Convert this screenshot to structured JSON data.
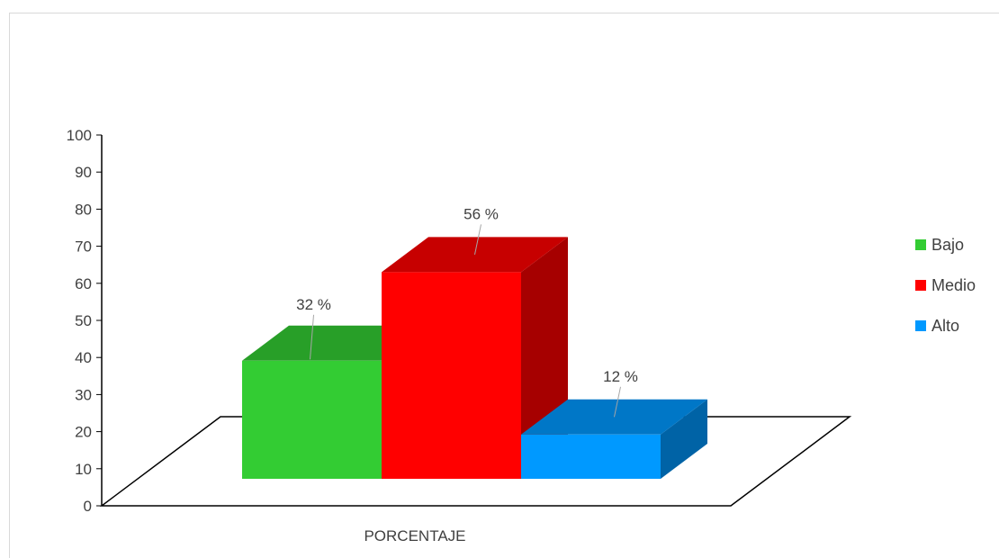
{
  "chart_data": {
    "type": "bar",
    "title": "",
    "xlabel": "PORCENTAJE",
    "ylabel": "",
    "ylim": [
      0,
      100
    ],
    "y_ticks": [
      0,
      10,
      20,
      30,
      40,
      50,
      60,
      70,
      80,
      90,
      100
    ],
    "categories": [
      "PORCENTAJE"
    ],
    "series": [
      {
        "name": "Bajo",
        "values": [
          32
        ],
        "label": "32 %",
        "color": "#33cc33"
      },
      {
        "name": "Medio",
        "values": [
          56
        ],
        "label": "56 %",
        "color": "#ff0000"
      },
      {
        "name": "Alto",
        "values": [
          12
        ],
        "label": "12 %",
        "color": "#0099ff"
      }
    ],
    "legend_position": "right",
    "grid": false,
    "style": "3d-clustered-column"
  }
}
